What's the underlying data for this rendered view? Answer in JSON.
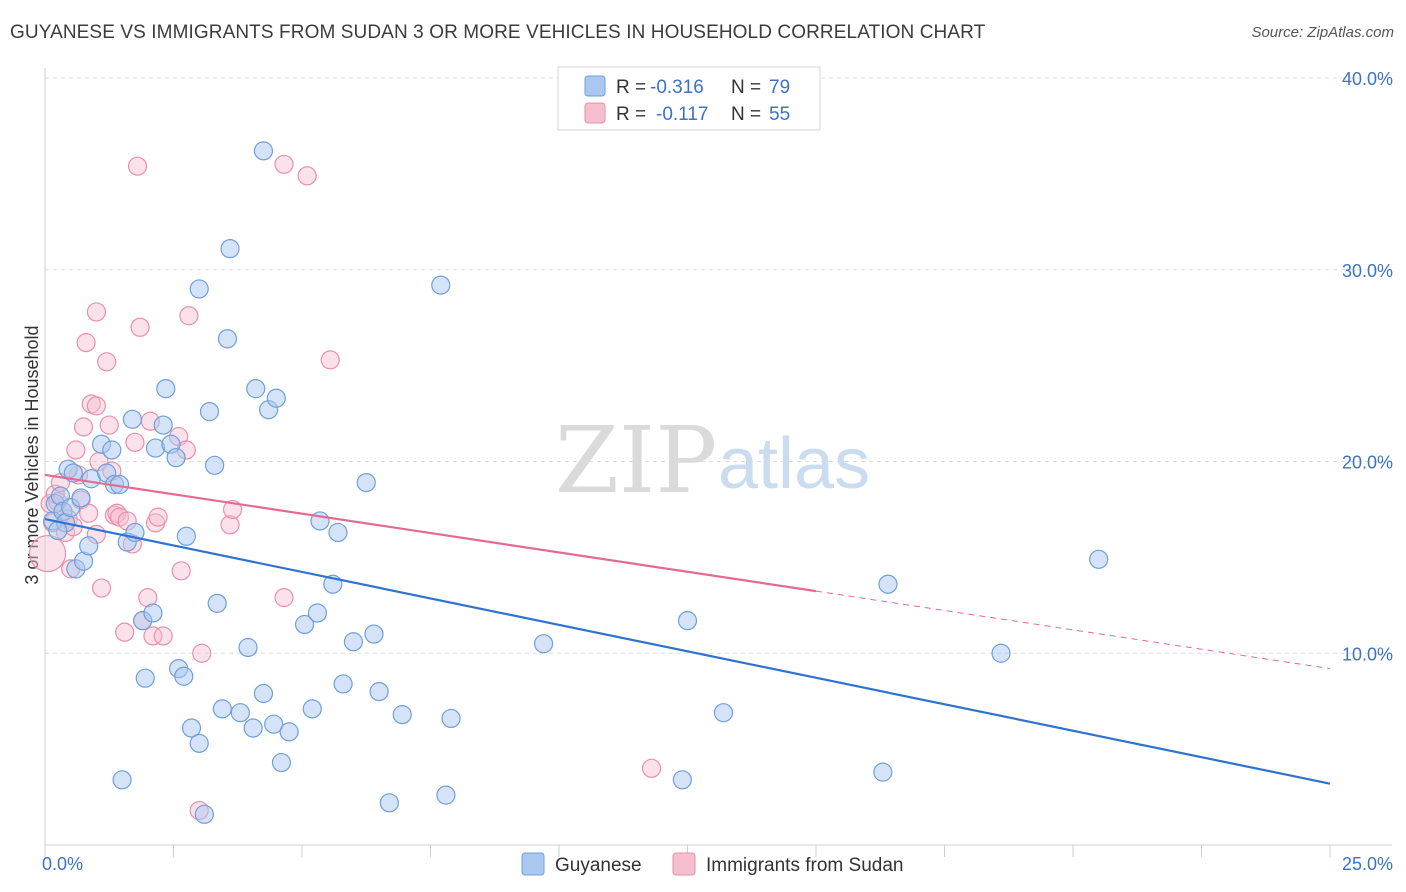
{
  "title": "GUYANESE VS IMMIGRANTS FROM SUDAN 3 OR MORE VEHICLES IN HOUSEHOLD CORRELATION CHART",
  "source": "Source: ZipAtlas.com",
  "watermark": {
    "zip": "ZIP",
    "atlas": "atlas"
  },
  "chart_data": {
    "type": "scatter",
    "ylabel": "3 or more Vehicles in Household",
    "xlim": [
      0,
      25
    ],
    "ylim": [
      0,
      40
    ],
    "x_tick_labels": [
      {
        "value": 0,
        "label": "0.0%"
      },
      {
        "value": 25,
        "label": "25.0%"
      }
    ],
    "y_tick_labels": [
      {
        "value": 10,
        "label": "10.0%"
      },
      {
        "value": 20,
        "label": "20.0%"
      },
      {
        "value": 30,
        "label": "30.0%"
      },
      {
        "value": 40,
        "label": "40.0%"
      }
    ],
    "grid": "horizontal dashed",
    "legend_position": "top-center",
    "colors": {
      "guyanese_fill": "#aac8ef",
      "guyanese_stroke": "#6f9fdc",
      "guyanese_line": "#2f73d0",
      "sudan_fill": "#f6bfd0",
      "sudan_stroke": "#eb8fac",
      "sudan_line": "#e46a92",
      "axis_text": "#3d72c8"
    },
    "series": [
      {
        "name": "Guyanese",
        "R": "-0.316",
        "N": "79",
        "trend": {
          "x0": 0,
          "y0": 17.0,
          "x1": 25,
          "y1": 3.2,
          "solid_to": 25
        },
        "points": [
          [
            0.15,
            16.9
          ],
          [
            0.2,
            17.8
          ],
          [
            0.3,
            18.2
          ],
          [
            0.35,
            17.4
          ],
          [
            0.4,
            16.8
          ],
          [
            0.45,
            19.6
          ],
          [
            0.5,
            17.6
          ],
          [
            0.55,
            19.4
          ],
          [
            0.6,
            14.4
          ],
          [
            0.7,
            18.1
          ],
          [
            0.75,
            14.8
          ],
          [
            0.85,
            15.6
          ],
          [
            0.9,
            19.1
          ],
          [
            1.1,
            20.9
          ],
          [
            1.2,
            19.4
          ],
          [
            1.3,
            20.6
          ],
          [
            1.35,
            18.8
          ],
          [
            1.45,
            18.8
          ],
          [
            1.5,
            3.4
          ],
          [
            1.6,
            15.8
          ],
          [
            1.7,
            22.2
          ],
          [
            1.75,
            16.3
          ],
          [
            1.9,
            11.7
          ],
          [
            1.95,
            8.7
          ],
          [
            2.1,
            12.1
          ],
          [
            2.15,
            20.7
          ],
          [
            2.3,
            21.9
          ],
          [
            2.35,
            23.8
          ],
          [
            2.45,
            20.9
          ],
          [
            2.55,
            20.2
          ],
          [
            2.6,
            9.2
          ],
          [
            2.7,
            8.8
          ],
          [
            2.75,
            16.1
          ],
          [
            2.85,
            6.1
          ],
          [
            3.0,
            5.3
          ],
          [
            3.0,
            29.0
          ],
          [
            3.1,
            1.6
          ],
          [
            3.2,
            22.6
          ],
          [
            3.3,
            19.8
          ],
          [
            3.35,
            12.6
          ],
          [
            3.45,
            7.1
          ],
          [
            3.55,
            26.4
          ],
          [
            3.6,
            31.1
          ],
          [
            3.8,
            6.9
          ],
          [
            3.95,
            10.3
          ],
          [
            4.05,
            6.1
          ],
          [
            4.1,
            23.8
          ],
          [
            4.25,
            7.9
          ],
          [
            4.25,
            36.2
          ],
          [
            4.35,
            22.7
          ],
          [
            4.45,
            6.3
          ],
          [
            4.5,
            23.3
          ],
          [
            4.6,
            4.3
          ],
          [
            4.75,
            5.9
          ],
          [
            5.05,
            11.5
          ],
          [
            5.2,
            7.1
          ],
          [
            5.3,
            12.1
          ],
          [
            5.35,
            16.9
          ],
          [
            5.6,
            13.6
          ],
          [
            5.7,
            16.3
          ],
          [
            5.8,
            8.4
          ],
          [
            6.0,
            10.6
          ],
          [
            6.25,
            18.9
          ],
          [
            6.4,
            11.0
          ],
          [
            6.5,
            8.0
          ],
          [
            6.7,
            2.2
          ],
          [
            6.95,
            6.8
          ],
          [
            7.7,
            29.2
          ],
          [
            7.8,
            2.6
          ],
          [
            7.9,
            6.6
          ],
          [
            9.7,
            10.5
          ],
          [
            12.4,
            3.4
          ],
          [
            12.5,
            11.7
          ],
          [
            13.2,
            6.9
          ],
          [
            16.3,
            3.8
          ],
          [
            16.4,
            13.6
          ],
          [
            18.6,
            10.0
          ],
          [
            20.5,
            14.9
          ],
          [
            0.25,
            16.4
          ]
        ]
      },
      {
        "name": "Immigrants from Sudan",
        "R": "-0.117",
        "N": "55",
        "trend": {
          "x0": 0,
          "y0": 19.3,
          "x1": 25,
          "y1": 9.2,
          "solid_to": 15
        },
        "points": [
          [
            0.05,
            15.2
          ],
          [
            0.1,
            17.8
          ],
          [
            0.2,
            18.3
          ],
          [
            0.25,
            17.9
          ],
          [
            0.3,
            18.9
          ],
          [
            0.35,
            17.4
          ],
          [
            0.4,
            16.3
          ],
          [
            0.45,
            17.0
          ],
          [
            0.5,
            14.4
          ],
          [
            0.55,
            16.6
          ],
          [
            0.6,
            20.6
          ],
          [
            0.65,
            19.3
          ],
          [
            0.7,
            18.0
          ],
          [
            0.75,
            21.8
          ],
          [
            0.8,
            26.2
          ],
          [
            0.85,
            17.3
          ],
          [
            0.9,
            23.0
          ],
          [
            1.0,
            27.8
          ],
          [
            1.0,
            22.9
          ],
          [
            1.05,
            20.0
          ],
          [
            1.1,
            13.4
          ],
          [
            1.2,
            25.2
          ],
          [
            1.25,
            21.9
          ],
          [
            1.3,
            19.5
          ],
          [
            1.35,
            17.2
          ],
          [
            1.4,
            17.3
          ],
          [
            1.45,
            17.1
          ],
          [
            1.55,
            11.1
          ],
          [
            1.6,
            16.9
          ],
          [
            1.7,
            15.7
          ],
          [
            1.75,
            21.0
          ],
          [
            1.8,
            35.4
          ],
          [
            1.85,
            27.0
          ],
          [
            1.9,
            11.7
          ],
          [
            2.0,
            12.9
          ],
          [
            2.05,
            22.1
          ],
          [
            2.1,
            10.9
          ],
          [
            2.15,
            16.8
          ],
          [
            2.2,
            17.1
          ],
          [
            2.3,
            10.9
          ],
          [
            2.6,
            21.3
          ],
          [
            2.65,
            14.3
          ],
          [
            2.75,
            20.6
          ],
          [
            2.8,
            27.6
          ],
          [
            3.0,
            1.8
          ],
          [
            3.05,
            10.0
          ],
          [
            3.6,
            16.7
          ],
          [
            3.65,
            17.5
          ],
          [
            4.65,
            12.9
          ],
          [
            4.65,
            35.5
          ],
          [
            5.1,
            34.9
          ],
          [
            5.55,
            25.3
          ],
          [
            11.8,
            4.0
          ],
          [
            1.0,
            16.2
          ],
          [
            0.15,
            16.8
          ]
        ]
      }
    ]
  },
  "legend": {
    "rows": [
      {
        "r_label": "R =",
        "r_value": "-0.316",
        "n_label": "N =",
        "n_value": "79"
      },
      {
        "r_label": "R =",
        "r_value": "-0.117",
        "n_label": "N =",
        "n_value": "55"
      }
    ]
  },
  "bottom_legend": [
    "Guyanese",
    "Immigrants from Sudan"
  ]
}
